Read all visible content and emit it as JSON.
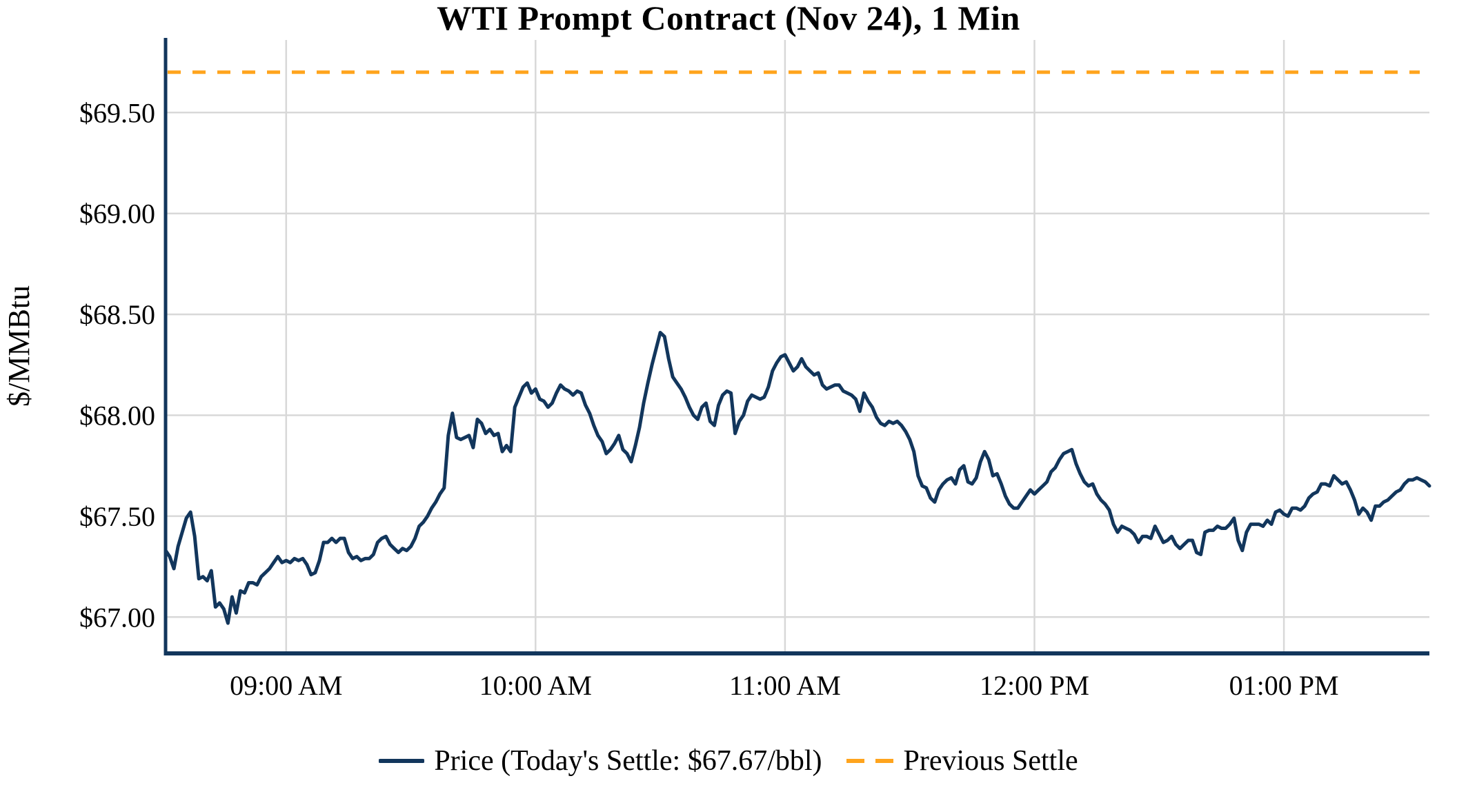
{
  "chart_data": {
    "type": "line",
    "title": "WTI Prompt Contract (Nov 24), 1 Min",
    "ylabel": "$/MMBtu",
    "x_start_time": "08:31 AM",
    "x_interval_minutes": 1,
    "today_settle_per_bbl": 67.67,
    "previous_settle": {
      "name": "Previous Settle",
      "value": 69.7,
      "style": "dashed"
    },
    "y_range": [
      66.82,
      69.87
    ],
    "grid": true,
    "legend": {
      "position": "bottom",
      "price_label": "Price (Today's Settle: $67.67/bbl)",
      "settle_label": "Previous Settle"
    },
    "colors": {
      "price_line": "#12365C",
      "previous_settle": "#FFA41D",
      "grid": "#D8D8D8",
      "axis": "#12365C",
      "text": "#000000",
      "background": "#FFFFFF"
    },
    "x_ticks": [
      {
        "index": 29,
        "label": "09:00 AM"
      },
      {
        "index": 89,
        "label": "10:00 AM"
      },
      {
        "index": 149,
        "label": "11:00 AM"
      },
      {
        "index": 209,
        "label": "12:00 PM"
      },
      {
        "index": 269,
        "label": "01:00 PM"
      }
    ],
    "y_ticks": [
      {
        "value": 67.0,
        "label": "$67.00"
      },
      {
        "value": 67.5,
        "label": "$67.50"
      },
      {
        "value": 68.0,
        "label": "$68.00"
      },
      {
        "value": 68.5,
        "label": "$68.50"
      },
      {
        "value": 69.0,
        "label": "$69.00"
      },
      {
        "value": 69.5,
        "label": "$69.50"
      }
    ],
    "series": [
      {
        "name": "Price",
        "unit": "$/MMBtu",
        "values": [
          67.33,
          67.3,
          67.24,
          67.35,
          67.42,
          67.49,
          67.52,
          67.4,
          67.19,
          67.2,
          67.18,
          67.23,
          67.05,
          67.07,
          67.04,
          66.97,
          67.1,
          67.02,
          67.13,
          67.12,
          67.17,
          67.17,
          67.16,
          67.2,
          67.22,
          67.24,
          67.27,
          67.3,
          67.27,
          67.28,
          67.27,
          67.29,
          67.28,
          67.29,
          67.26,
          67.21,
          67.22,
          67.28,
          67.37,
          67.37,
          67.39,
          67.37,
          67.39,
          67.39,
          67.32,
          67.29,
          67.3,
          67.28,
          67.29,
          67.29,
          67.31,
          67.37,
          67.39,
          67.4,
          67.36,
          67.34,
          67.32,
          67.34,
          67.33,
          67.35,
          67.39,
          67.45,
          67.47,
          67.5,
          67.54,
          67.57,
          67.61,
          67.64,
          67.9,
          68.01,
          67.89,
          67.88,
          67.89,
          67.9,
          67.84,
          67.98,
          67.96,
          67.91,
          67.93,
          67.9,
          67.91,
          67.82,
          67.85,
          67.82,
          68.04,
          68.09,
          68.14,
          68.16,
          68.11,
          68.13,
          68.08,
          68.07,
          68.04,
          68.06,
          68.11,
          68.15,
          68.13,
          68.12,
          68.1,
          68.12,
          68.11,
          68.05,
          68.01,
          67.95,
          67.9,
          67.87,
          67.81,
          67.83,
          67.86,
          67.9,
          67.83,
          67.81,
          67.77,
          67.85,
          67.94,
          68.06,
          68.16,
          68.25,
          68.33,
          68.41,
          68.39,
          68.28,
          68.19,
          68.16,
          68.13,
          68.09,
          68.04,
          68.0,
          67.98,
          68.04,
          68.06,
          67.97,
          67.95,
          68.05,
          68.1,
          68.12,
          68.11,
          67.91,
          67.97,
          68.0,
          68.07,
          68.1,
          68.09,
          68.08,
          68.09,
          68.14,
          68.22,
          68.26,
          68.29,
          68.3,
          68.26,
          68.22,
          68.24,
          68.28,
          68.24,
          68.22,
          68.2,
          68.21,
          68.15,
          68.13,
          68.14,
          68.15,
          68.15,
          68.12,
          68.11,
          68.1,
          68.08,
          68.02,
          68.11,
          68.07,
          68.04,
          67.99,
          67.96,
          67.95,
          67.97,
          67.96,
          67.97,
          67.95,
          67.92,
          67.88,
          67.82,
          67.7,
          67.65,
          67.64,
          67.59,
          67.57,
          67.63,
          67.66,
          67.68,
          67.69,
          67.66,
          67.73,
          67.75,
          67.67,
          67.66,
          67.69,
          67.77,
          67.82,
          67.78,
          67.7,
          67.71,
          67.66,
          67.6,
          67.56,
          67.54,
          67.54,
          67.57,
          67.6,
          67.63,
          67.61,
          67.63,
          67.65,
          67.67,
          67.72,
          67.74,
          67.78,
          67.81,
          67.82,
          67.83,
          67.76,
          67.71,
          67.67,
          67.65,
          67.66,
          67.61,
          67.58,
          67.56,
          67.53,
          67.46,
          67.42,
          67.45,
          67.44,
          67.43,
          67.41,
          67.37,
          67.4,
          67.4,
          67.39,
          67.45,
          67.41,
          67.37,
          67.38,
          67.4,
          67.36,
          67.34,
          67.36,
          67.38,
          67.38,
          67.32,
          67.31,
          67.42,
          67.43,
          67.43,
          67.45,
          67.44,
          67.44,
          67.46,
          67.49,
          67.38,
          67.33,
          67.42,
          67.46,
          67.46,
          67.46,
          67.45,
          67.48,
          67.46,
          67.52,
          67.53,
          67.51,
          67.5,
          67.54,
          67.54,
          67.53,
          67.55,
          67.59,
          67.61,
          67.62,
          67.66,
          67.66,
          67.65,
          67.7,
          67.68,
          67.66,
          67.67,
          67.63,
          67.58,
          67.51,
          67.54,
          67.52,
          67.48,
          67.55,
          67.55,
          67.57,
          67.58,
          67.6,
          67.62,
          67.63,
          67.66,
          67.68,
          67.68,
          67.69,
          67.68,
          67.67,
          67.65
        ]
      }
    ]
  }
}
